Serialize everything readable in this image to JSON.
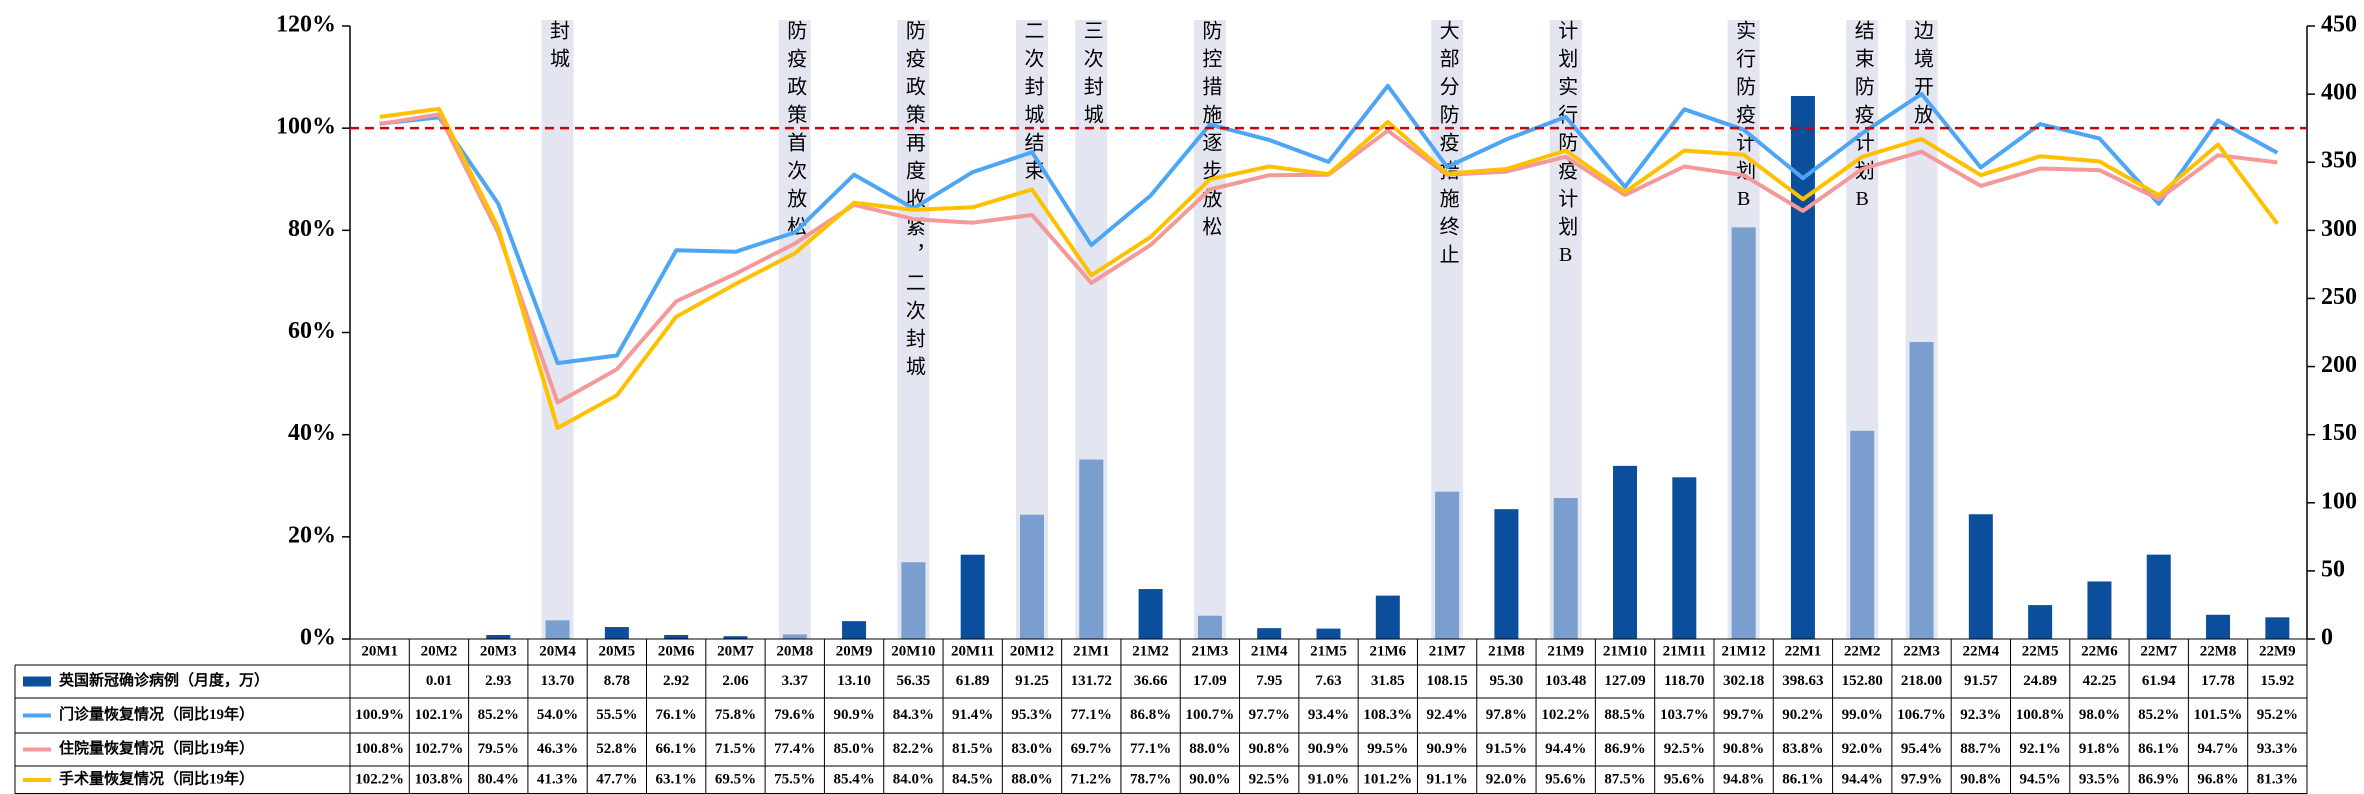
{
  "chart_data": {
    "type": "combo",
    "categories": [
      "20M1",
      "20M2",
      "20M3",
      "20M4",
      "20M5",
      "20M6",
      "20M7",
      "20M8",
      "20M9",
      "20M10",
      "20M11",
      "20M12",
      "21M1",
      "21M2",
      "21M3",
      "21M4",
      "21M5",
      "21M6",
      "21M7",
      "21M8",
      "21M9",
      "21M10",
      "21M11",
      "21M12",
      "22M1",
      "22M2",
      "22M3",
      "22M4",
      "22M5",
      "22M6",
      "22M7",
      "22M8",
      "22M9"
    ],
    "series": [
      {
        "name": "英国新冠确诊病例（月度，万）",
        "type": "bar",
        "axis": "y2",
        "color": "#0b4f9c",
        "highlight_color": "#7a9fcf",
        "values": [
          null,
          0.01,
          2.93,
          13.7,
          8.78,
          2.92,
          2.06,
          3.37,
          13.1,
          56.35,
          61.89,
          91.25,
          131.72,
          36.66,
          17.09,
          7.95,
          7.63,
          31.85,
          108.15,
          95.3,
          103.48,
          127.09,
          118.7,
          302.18,
          398.63,
          152.8,
          218,
          91.57,
          24.89,
          42.25,
          61.94,
          17.78,
          15.92
        ],
        "value_labels": [
          null,
          "0.01",
          "2.93",
          "13.70",
          "8.78",
          "2.92",
          "2.06",
          "3.37",
          "13.10",
          "56.35",
          "61.89",
          "91.25",
          "131.72",
          "36.66",
          "17.09",
          "7.95",
          "7.63",
          "31.85",
          "108.15",
          "95.30",
          "103.48",
          "127.09",
          "118.70",
          "302.18",
          "398.63",
          "152.80",
          "218.00",
          "91.57",
          "24.89",
          "42.25",
          "61.94",
          "17.78",
          "15.92"
        ]
      },
      {
        "name": "门诊量恢复情况（同比19年）",
        "type": "line",
        "color": "#4da6f5",
        "values": [
          100.9,
          102.1,
          85.2,
          54.0,
          55.5,
          76.1,
          75.8,
          79.6,
          90.9,
          84.3,
          91.4,
          95.3,
          77.1,
          86.8,
          100.7,
          97.7,
          93.4,
          108.3,
          92.4,
          97.8,
          102.2,
          88.5,
          103.7,
          99.7,
          90.2,
          99.0,
          106.7,
          92.3,
          100.8,
          98.0,
          85.2,
          101.5,
          95.2
        ],
        "value_labels": [
          "100.9%",
          "102.1%",
          "85.2%",
          "54.0%",
          "55.5%",
          "76.1%",
          "75.8%",
          "79.6%",
          "90.9%",
          "84.3%",
          "91.4%",
          "95.3%",
          "77.1%",
          "86.8%",
          "100.7%",
          "97.7%",
          "93.4%",
          "108.3%",
          "92.4%",
          "97.8%",
          "102.2%",
          "88.5%",
          "103.7%",
          "99.7%",
          "90.2%",
          "99.0%",
          "106.7%",
          "92.3%",
          "100.8%",
          "98.0%",
          "85.2%",
          "101.5%",
          "95.2%"
        ]
      },
      {
        "name": "住院量恢复情况（同比19年）",
        "type": "line",
        "color": "#f4999a",
        "values": [
          100.8,
          102.7,
          79.5,
          46.3,
          52.8,
          66.1,
          71.5,
          77.4,
          85.0,
          82.2,
          81.5,
          83.0,
          69.7,
          77.1,
          88.0,
          90.8,
          90.9,
          99.5,
          90.9,
          91.5,
          94.4,
          86.9,
          92.5,
          90.8,
          83.8,
          92.0,
          95.4,
          88.7,
          92.1,
          91.8,
          86.1,
          94.7,
          93.3
        ],
        "value_labels": [
          "100.8%",
          "102.7%",
          "79.5%",
          "46.3%",
          "52.8%",
          "66.1%",
          "71.5%",
          "77.4%",
          "85.0%",
          "82.2%",
          "81.5%",
          "83.0%",
          "69.7%",
          "77.1%",
          "88.0%",
          "90.8%",
          "90.9%",
          "99.5%",
          "90.9%",
          "91.5%",
          "94.4%",
          "86.9%",
          "92.5%",
          "90.8%",
          "83.8%",
          "92.0%",
          "95.4%",
          "88.7%",
          "92.1%",
          "91.8%",
          "86.1%",
          "94.7%",
          "93.3%"
        ]
      },
      {
        "name": "手术量恢复情况（同比19年）",
        "type": "line",
        "color": "#ffc000",
        "values": [
          102.2,
          103.8,
          80.4,
          41.3,
          47.7,
          63.1,
          69.5,
          75.5,
          85.4,
          84.0,
          84.5,
          88.0,
          71.2,
          78.7,
          90.0,
          92.5,
          91.0,
          101.2,
          91.1,
          92.0,
          95.6,
          87.5,
          95.6,
          94.8,
          86.1,
          94.4,
          97.9,
          90.8,
          94.5,
          93.5,
          86.9,
          96.8,
          81.3
        ],
        "value_labels": [
          "102.2%",
          "103.8%",
          "80.4%",
          "41.3%",
          "47.7%",
          "63.1%",
          "69.5%",
          "75.5%",
          "85.4%",
          "84.0%",
          "84.5%",
          "88.0%",
          "71.2%",
          "78.7%",
          "90.0%",
          "92.5%",
          "91.0%",
          "101.2%",
          "91.1%",
          "92.0%",
          "95.6%",
          "87.5%",
          "95.6%",
          "94.8%",
          "86.1%",
          "94.4%",
          "97.9%",
          "90.8%",
          "94.5%",
          "93.5%",
          "86.9%",
          "96.8%",
          "81.3%"
        ]
      }
    ],
    "ylim": [
      0,
      120
    ],
    "yticks": [
      {
        "value": 0,
        "label": "0%"
      },
      {
        "value": 20,
        "label": "20%"
      },
      {
        "value": 40,
        "label": "40%"
      },
      {
        "value": 60,
        "label": "60%"
      },
      {
        "value": 80,
        "label": "80%"
      },
      {
        "value": 100,
        "label": "100%"
      },
      {
        "value": 120,
        "label": "120%"
      }
    ],
    "y2lim": [
      0,
      450
    ],
    "y2ticks": [
      0,
      50,
      100,
      150,
      200,
      250,
      300,
      350,
      400,
      450
    ],
    "reference_line": 100,
    "reference_color": "#d00000",
    "band_color": "#e3e5f1",
    "annotations": [
      {
        "x": "20M4",
        "text": "封城"
      },
      {
        "x": "20M8",
        "text": "防疫政策首次放松"
      },
      {
        "x": "20M10",
        "text": "防疫政策再度收紧，二次封城"
      },
      {
        "x": "20M12",
        "text": "二次封城结束"
      },
      {
        "x": "21M1",
        "text": "三次封城"
      },
      {
        "x": "21M3",
        "text": "防控措施逐步放松"
      },
      {
        "x": "21M7",
        "text": "大部分防疫措施终止"
      },
      {
        "x": "21M9",
        "text": "计划实行防疫计划B"
      },
      {
        "x": "21M12",
        "text": "实行防疫计划B"
      },
      {
        "x": "22M2",
        "text": "结束防疫计划B"
      },
      {
        "x": "22M3",
        "text": "边境开放"
      }
    ]
  }
}
